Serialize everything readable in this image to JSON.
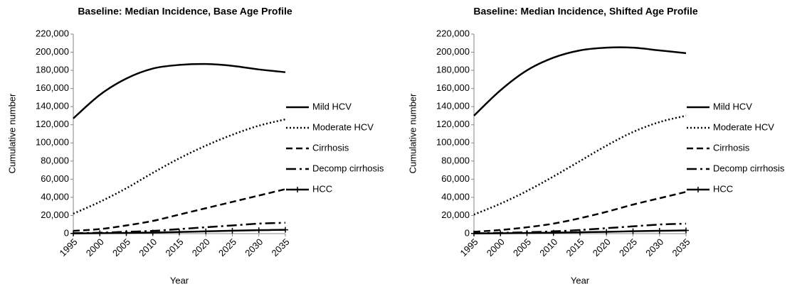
{
  "chart_data": [
    {
      "type": "line",
      "title": "Baseline: Median Incidence, Base Age Profile",
      "x_label": "Year",
      "y_label": "Cumulative number",
      "x": [
        1995,
        2000,
        2005,
        2010,
        2015,
        2020,
        2025,
        2030,
        2035
      ],
      "xlim": [
        1995,
        2035
      ],
      "xticks": [
        1995,
        2000,
        2005,
        2010,
        2015,
        2020,
        2025,
        2030,
        2035
      ],
      "ylim": [
        0,
        220000
      ],
      "yticks": [
        {
          "value": 0,
          "label": "0"
        },
        {
          "value": 20000,
          "label": "20,000"
        },
        {
          "value": 40000,
          "label": "40,000"
        },
        {
          "value": 60000,
          "label": "60,000"
        },
        {
          "value": 80000,
          "label": "80,000"
        },
        {
          "value": 100000,
          "label": "100,000"
        },
        {
          "value": 120000,
          "label": "120,000"
        },
        {
          "value": 140000,
          "label": "140,000"
        },
        {
          "value": 160000,
          "label": "160,000"
        },
        {
          "value": 180000,
          "label": "180,000"
        },
        {
          "value": 200000,
          "label": "200,000"
        },
        {
          "value": 220000,
          "label": "220,000"
        }
      ],
      "legend": "right",
      "series": [
        {
          "name": "Mild HCV",
          "color": "#000000",
          "style": "solid",
          "values": [
            127000,
            153000,
            171000,
            182000,
            186000,
            187000,
            185000,
            181000,
            178000
          ]
        },
        {
          "name": "Moderate HCV",
          "color": "#000000",
          "style": "dotted",
          "values": [
            22000,
            35000,
            50000,
            67000,
            83000,
            97000,
            109000,
            119000,
            126000
          ]
        },
        {
          "name": "Cirrhosis",
          "color": "#000000",
          "style": "dashed",
          "values": [
            3000,
            5000,
            9000,
            14000,
            21000,
            28000,
            35000,
            42000,
            49000
          ]
        },
        {
          "name": "Decomp cirrhosis",
          "color": "#000000",
          "style": "dashdot",
          "values": [
            500,
            1000,
            2000,
            3000,
            5000,
            7000,
            9000,
            11000,
            12000
          ]
        },
        {
          "name": "HCC",
          "color": "#000000",
          "style": "solid-marker",
          "values": [
            200,
            500,
            800,
            1200,
            1800,
            2500,
            3200,
            3800,
            4200
          ]
        }
      ]
    },
    {
      "type": "line",
      "title": "Baseline: Median Incidence, Shifted Age Profile",
      "x_label": "Year",
      "y_label": "Cumulative number",
      "x": [
        1995,
        2000,
        2005,
        2010,
        2015,
        2020,
        2025,
        2030,
        2035
      ],
      "xlim": [
        1995,
        2035
      ],
      "xticks": [
        1995,
        2000,
        2005,
        2010,
        2015,
        2020,
        2025,
        2030,
        2035
      ],
      "ylim": [
        0,
        220000
      ],
      "yticks": [
        {
          "value": 0,
          "label": "0"
        },
        {
          "value": 20000,
          "label": "20,000"
        },
        {
          "value": 40000,
          "label": "40,000"
        },
        {
          "value": 60000,
          "label": "60,000"
        },
        {
          "value": 80000,
          "label": "80,000"
        },
        {
          "value": 100000,
          "label": "100,000"
        },
        {
          "value": 120000,
          "label": "120,000"
        },
        {
          "value": 140000,
          "label": "140,000"
        },
        {
          "value": 160000,
          "label": "160,000"
        },
        {
          "value": 180000,
          "label": "180,000"
        },
        {
          "value": 200000,
          "label": "200,000"
        },
        {
          "value": 220000,
          "label": "220,000"
        }
      ],
      "legend": "right",
      "series": [
        {
          "name": "Mild HCV",
          "color": "#000000",
          "style": "solid",
          "values": [
            130000,
            158000,
            180000,
            194000,
            202000,
            205000,
            205000,
            202000,
            199000
          ]
        },
        {
          "name": "Moderate HCV",
          "color": "#000000",
          "style": "dotted",
          "values": [
            21000,
            33000,
            47000,
            63000,
            80000,
            97000,
            112000,
            123000,
            130000
          ]
        },
        {
          "name": "Cirrhosis",
          "color": "#000000",
          "style": "dashed",
          "values": [
            2000,
            4000,
            7000,
            11000,
            17000,
            24000,
            32000,
            39000,
            46000
          ]
        },
        {
          "name": "Decomp cirrhosis",
          "color": "#000000",
          "style": "dashdot",
          "values": [
            400,
            800,
            1500,
            2500,
            4000,
            6000,
            8000,
            10000,
            11000
          ]
        },
        {
          "name": "HCC",
          "color": "#000000",
          "style": "solid-marker",
          "values": [
            200,
            400,
            700,
            1000,
            1500,
            2000,
            2600,
            3100,
            3500
          ]
        }
      ]
    }
  ]
}
